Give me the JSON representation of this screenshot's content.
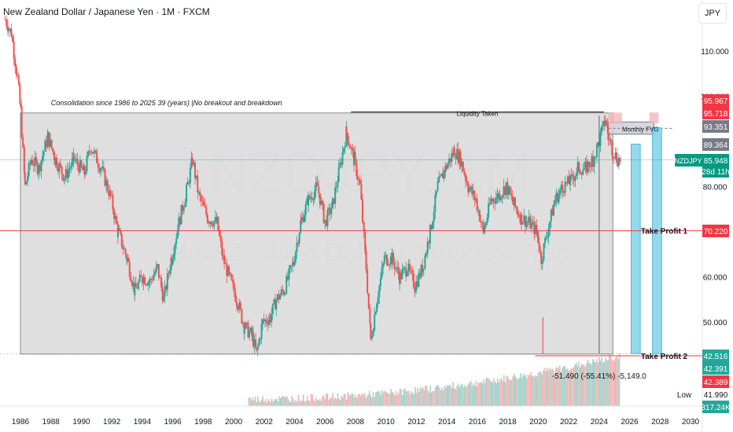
{
  "header": {
    "symbol_title": "New Zealand Dollar / Japanese Yen · 1M · FXCM",
    "currency": "JPY"
  },
  "watermark": {
    "symbol": "NZDJPY, 1M",
    "name": "New Zealand Dollar / Japanese Yen"
  },
  "colors": {
    "up": "#26a69a",
    "down": "#ef5350",
    "zone": "#d9d9d9",
    "target_zone": "#7fd3e8",
    "fvg": "#f4b6b9",
    "level_line": "#f23645",
    "price_line": "#089981",
    "volume_up": "#9fd6cf",
    "volume_down": "#f8b6b4"
  },
  "annotations": {
    "consolidation": "Consolidation since 1986 to 2025 39 (years) |No breakout and breakdown",
    "liquidity": "Liquidity Taken",
    "fvg": "Monthly  FVG",
    "tp1": "Take Profit 1",
    "tp2": "Take Profit 2",
    "measure": "-51.490 (-55.41%) -5,149.0"
  },
  "price_badges": [
    {
      "value": 95.967,
      "label": "95.967",
      "bg": "#f23645",
      "fg": "#ffffff"
    },
    {
      "value": 95.718,
      "label": "95.718",
      "bg": "#f23645",
      "fg": "#ffffff"
    },
    {
      "value": 93.351,
      "label": "93.351",
      "bg": "#787b86",
      "fg": "#ffffff"
    },
    {
      "value": 89.364,
      "label": "89.364",
      "bg": "#787b86",
      "fg": "#ffffff"
    },
    {
      "value": 85.948,
      "label": "85.948",
      "bg": "#089981",
      "fg": "#ffffff",
      "ticker": "NZDJPY",
      "countdown": "28d 11h"
    },
    {
      "value": 70.22,
      "label": "70.220",
      "bg": "#f23645",
      "fg": "#ffffff"
    },
    {
      "value": 42.516,
      "label": "42.516",
      "bg": "#26a69a",
      "fg": "#ffffff"
    },
    {
      "value": 42.391,
      "label": "42.391",
      "bg": "#26a69a",
      "fg": "#ffffff"
    },
    {
      "value": 42.389,
      "label": "42.389",
      "bg": "#f23645",
      "fg": "#ffffff"
    },
    {
      "value": 41.99,
      "label": "41.990",
      "bg": "#ffffff",
      "fg": "#131722",
      "prefix": "Low"
    },
    {
      "value": 317.24,
      "label": "317.24K",
      "bg": "#26a69a",
      "fg": "#ffffff"
    }
  ],
  "chart_data": {
    "type": "candlestick",
    "title": "New Zealand Dollar / Japanese Yen · 1M · FXCM",
    "y_unit": "JPY",
    "ylim": [
      40,
      117
    ],
    "xlim": [
      1985.0,
      2030.6
    ],
    "y_ticks": [
      110,
      100,
      90,
      80,
      70,
      60,
      50
    ],
    "y_tick_labels": [
      "110.000",
      "100.000",
      "90.000",
      "80.000",
      "70.000",
      "60.000",
      "50.000"
    ],
    "x_ticks": [
      1986,
      1988,
      1990,
      1992,
      1994,
      1996,
      1998,
      2000,
      2002,
      2004,
      2006,
      2008,
      2010,
      2012,
      2014,
      2016,
      2018,
      2020,
      2022,
      2024,
      2026,
      2028,
      2030
    ],
    "x_tick_labels": [
      "1986",
      "1988",
      "1990",
      "1992",
      "1994",
      "1996",
      "1998",
      "2000",
      "2002",
      "2004",
      "2006",
      "2008",
      "2010",
      "2012",
      "2014",
      "2016",
      "2018",
      "2020",
      "2022",
      "2024",
      "2026",
      "2028",
      "2030"
    ],
    "price_path": [
      [
        1985.0,
        117.0
      ],
      [
        1985.4,
        114.0
      ],
      [
        1985.8,
        104.0
      ],
      [
        1986.0,
        97.0
      ],
      [
        1986.3,
        80.0
      ],
      [
        1986.7,
        86.0
      ],
      [
        1987.2,
        84.0
      ],
      [
        1987.8,
        91.0
      ],
      [
        1988.3,
        86.0
      ],
      [
        1988.9,
        82.0
      ],
      [
        1989.5,
        86.0
      ],
      [
        1990.2,
        83.0
      ],
      [
        1990.6,
        89.0
      ],
      [
        1991.3,
        84.0
      ],
      [
        1991.9,
        78.0
      ],
      [
        1992.4,
        70.0
      ],
      [
        1993.0,
        64.0
      ],
      [
        1993.5,
        57.0
      ],
      [
        1994.0,
        60.0
      ],
      [
        1994.5,
        59.0
      ],
      [
        1995.0,
        62.0
      ],
      [
        1995.4,
        55.0
      ],
      [
        1995.9,
        64.0
      ],
      [
        1996.4,
        72.0
      ],
      [
        1996.9,
        79.0
      ],
      [
        1997.3,
        86.0
      ],
      [
        1997.7,
        78.0
      ],
      [
        1998.3,
        73.0
      ],
      [
        1998.9,
        72.0
      ],
      [
        1999.3,
        64.0
      ],
      [
        1999.7,
        60.0
      ],
      [
        2000.2,
        55.0
      ],
      [
        2000.7,
        49.0
      ],
      [
        2001.2,
        47.0
      ],
      [
        2001.5,
        43.0
      ],
      [
        2001.9,
        50.0
      ],
      [
        2002.4,
        51.0
      ],
      [
        2002.8,
        55.0
      ],
      [
        2003.3,
        57.0
      ],
      [
        2003.9,
        63.0
      ],
      [
        2004.4,
        72.0
      ],
      [
        2004.9,
        77.0
      ],
      [
        2005.5,
        80.0
      ],
      [
        2006.0,
        72.0
      ],
      [
        2006.5,
        76.0
      ],
      [
        2006.9,
        83.0
      ],
      [
        2007.4,
        92.0
      ],
      [
        2007.9,
        86.0
      ],
      [
        2008.3,
        80.0
      ],
      [
        2008.7,
        62.0
      ],
      [
        2009.0,
        46.0
      ],
      [
        2009.4,
        55.0
      ],
      [
        2009.9,
        64.0
      ],
      [
        2010.4,
        64.0
      ],
      [
        2010.9,
        60.0
      ],
      [
        2011.4,
        62.0
      ],
      [
        2011.9,
        58.0
      ],
      [
        2012.4,
        62.0
      ],
      [
        2012.9,
        70.0
      ],
      [
        2013.4,
        80.0
      ],
      [
        2013.9,
        84.0
      ],
      [
        2014.5,
        88.0
      ],
      [
        2014.9,
        86.0
      ],
      [
        2015.4,
        80.0
      ],
      [
        2015.9,
        77.0
      ],
      [
        2016.4,
        70.0
      ],
      [
        2016.9,
        77.0
      ],
      [
        2017.4,
        78.0
      ],
      [
        2017.9,
        80.0
      ],
      [
        2018.4,
        76.0
      ],
      [
        2018.9,
        73.0
      ],
      [
        2019.4,
        72.0
      ],
      [
        2019.9,
        70.0
      ],
      [
        2020.2,
        64.0
      ],
      [
        2020.6,
        70.0
      ],
      [
        2021.1,
        77.0
      ],
      [
        2021.6,
        80.0
      ],
      [
        2022.1,
        81.0
      ],
      [
        2022.6,
        84.0
      ],
      [
        2023.1,
        84.0
      ],
      [
        2023.6,
        86.0
      ],
      [
        2024.0,
        90.0
      ],
      [
        2024.4,
        95.0
      ],
      [
        2024.6,
        91.0
      ],
      [
        2024.9,
        88.0
      ],
      [
        2025.2,
        86.0
      ],
      [
        2025.4,
        85.948
      ]
    ],
    "consolidation_zone": {
      "x": [
        1986.0,
        2024.9
      ],
      "y": [
        42.9,
        96.3
      ]
    },
    "fvg_zone": {
      "x": [
        2024.6,
        2027.6
      ],
      "y": [
        91.6,
        94.3
      ]
    },
    "liquidity_line": {
      "x": [
        2007.7,
        2024.3
      ],
      "y": 96.5
    },
    "take_profit_1": 70.22,
    "take_profit_2": 42.516,
    "current_price": 85.948,
    "target_bars": [
      {
        "x": [
          2026.1,
          2026.7
        ],
        "y": [
          43.0,
          89.4
        ]
      },
      {
        "x": [
          2027.5,
          2028.1
        ],
        "y": [
          43.0,
          93.0
        ]
      }
    ],
    "volume_axis_label": "317.24K"
  }
}
